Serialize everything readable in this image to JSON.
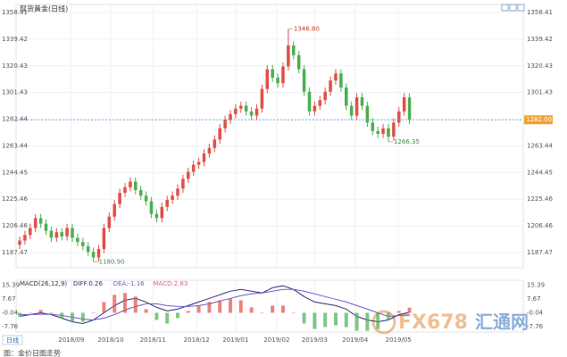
{
  "chart_data": [
    {
      "type": "candlestick",
      "title": "现货黄金(日线)",
      "open": [
        1193,
        1196,
        1200,
        1205,
        1212,
        1208,
        1203,
        1198,
        1202,
        1199,
        1205,
        1198,
        1195,
        1192,
        1188,
        1184,
        1190,
        1205,
        1213,
        1222,
        1230,
        1234,
        1238,
        1232,
        1228,
        1224,
        1215,
        1212,
        1220,
        1225,
        1228,
        1233,
        1240,
        1245,
        1250,
        1252,
        1258,
        1262,
        1268,
        1276,
        1282,
        1286,
        1290,
        1292,
        1288,
        1285,
        1290,
        1304,
        1318,
        1312,
        1308,
        1320,
        1335,
        1328,
        1318,
        1302,
        1288,
        1292,
        1296,
        1302,
        1310,
        1315,
        1305,
        1292,
        1285,
        1298,
        1292,
        1280,
        1274,
        1272,
        1276,
        1270,
        1280,
        1288,
        1298
      ],
      "high": [
        1199,
        1203,
        1208,
        1215,
        1215,
        1211,
        1206,
        1205,
        1205,
        1208,
        1208,
        1201,
        1198,
        1195,
        1191,
        1193,
        1208,
        1216,
        1225,
        1233,
        1237,
        1241,
        1241,
        1235,
        1231,
        1227,
        1218,
        1223,
        1228,
        1231,
        1236,
        1243,
        1248,
        1253,
        1255,
        1261,
        1265,
        1271,
        1279,
        1285,
        1289,
        1293,
        1295,
        1295,
        1291,
        1293,
        1307,
        1321,
        1321,
        1315,
        1323,
        1346.8,
        1338,
        1331,
        1321,
        1305,
        1295,
        1299,
        1305,
        1313,
        1318,
        1318,
        1308,
        1295,
        1301,
        1301,
        1295,
        1283,
        1277,
        1279,
        1279,
        1283,
        1291,
        1301,
        1301
      ],
      "low": [
        1190,
        1193,
        1197,
        1202,
        1205,
        1200,
        1195,
        1195,
        1196,
        1196,
        1195,
        1192,
        1189,
        1185,
        1180.9,
        1181,
        1187,
        1202,
        1210,
        1219,
        1227,
        1231,
        1229,
        1225,
        1221,
        1212,
        1209,
        1209,
        1217,
        1222,
        1225,
        1230,
        1237,
        1242,
        1247,
        1249,
        1255,
        1259,
        1265,
        1273,
        1279,
        1283,
        1287,
        1285,
        1282,
        1282,
        1287,
        1301,
        1309,
        1305,
        1305,
        1317,
        1325,
        1315,
        1299,
        1285,
        1285,
        1289,
        1293,
        1299,
        1307,
        1302,
        1289,
        1282,
        1282,
        1289,
        1277,
        1271,
        1269,
        1269,
        1266.35,
        1267,
        1277,
        1285,
        1279
      ],
      "close": [
        1196,
        1200,
        1205,
        1212,
        1208,
        1203,
        1198,
        1202,
        1199,
        1205,
        1198,
        1195,
        1192,
        1188,
        1184,
        1190,
        1205,
        1213,
        1222,
        1230,
        1234,
        1238,
        1232,
        1228,
        1224,
        1215,
        1212,
        1220,
        1225,
        1228,
        1233,
        1240,
        1245,
        1250,
        1252,
        1258,
        1262,
        1268,
        1276,
        1282,
        1286,
        1290,
        1292,
        1288,
        1285,
        1290,
        1304,
        1318,
        1312,
        1308,
        1320,
        1335,
        1328,
        1318,
        1302,
        1288,
        1292,
        1296,
        1302,
        1310,
        1315,
        1305,
        1292,
        1285,
        1298,
        1292,
        1280,
        1274,
        1272,
        1276,
        1270,
        1280,
        1288,
        1298,
        1282
      ],
      "up_color": "#e0504a",
      "down_color": "#4caf50",
      "xlim": [
        -0.68,
        95.6
      ],
      "ylim": [
        1176.67,
        1364.13
      ],
      "yticks": [
        1358.41,
        1339.42,
        1320.43,
        1301.43,
        1282.44,
        1263.44,
        1244.45,
        1225.46,
        1206.46,
        1187.47
      ],
      "xticks": [
        {
          "value": 9.8,
          "label": "2018/09"
        },
        {
          "value": 17.3,
          "label": "2018/10"
        },
        {
          "value": 25.3,
          "label": "2018/11"
        },
        {
          "value": 33.6,
          "label": "2018/12"
        },
        {
          "value": 41,
          "label": "2019/01"
        },
        {
          "value": 48.8,
          "label": "2019/02"
        },
        {
          "value": 56,
          "label": "2019/03"
        },
        {
          "value": 63.7,
          "label": "2019/04"
        },
        {
          "value": 71.9,
          "label": "2019/05"
        }
      ],
      "annotations": [
        {
          "index": 51,
          "value": 1346.8,
          "label": "1346.80",
          "color": "#c0392b"
        },
        {
          "index": 70,
          "value": 1266.35,
          "label": "1266.35",
          "color": "#3f8f3f"
        },
        {
          "index": 14,
          "value": 1180.9,
          "label": "1180.90",
          "color": "#3f8f3f"
        }
      ],
      "last_price": {
        "value": 1282,
        "label": "1282.00"
      },
      "last_price_color": "#f0a030",
      "grid": true
    },
    {
      "type": "macd",
      "title": "MACD(26,12,9)",
      "x": [
        0,
        2,
        4,
        6,
        8,
        10,
        12,
        14,
        16,
        18,
        20,
        22,
        24,
        26,
        28,
        30,
        32,
        34,
        36,
        38,
        40,
        42,
        44,
        46,
        48,
        50,
        52,
        54,
        56,
        58,
        60,
        62,
        64,
        66,
        68,
        70,
        72,
        74
      ],
      "xlim": [
        -0.68,
        95.6
      ],
      "ylim": [
        -10.7,
        18.1
      ],
      "yticks": [
        15.39,
        7.67,
        -0.04,
        -7.76
      ],
      "series": [
        {
          "name": "DIFF:0.26",
          "color": "#2d2d7a",
          "values": [
            -2,
            -1,
            0,
            -1,
            -3,
            -5,
            -6,
            -4,
            0,
            4,
            7,
            8,
            6,
            3,
            1,
            2,
            4,
            6,
            8,
            10,
            12,
            13,
            12,
            11,
            14,
            15,
            13,
            9,
            6,
            5,
            4,
            2,
            -2,
            -4,
            -5,
            -4,
            -1,
            0.26
          ]
        },
        {
          "name": "DEA:-1.16",
          "color": "#6a5acd",
          "values": [
            -1,
            -1,
            -0.8,
            -0.8,
            -1.5,
            -2.5,
            -3.5,
            -4,
            -3,
            -1,
            1.5,
            3.5,
            5,
            5,
            4,
            3.5,
            3.5,
            4,
            5,
            6.5,
            8,
            9.5,
            10.5,
            11,
            12,
            13,
            13,
            12,
            10.5,
            9,
            7.5,
            6,
            4,
            2,
            0,
            -2,
            -1.5,
            -1.16
          ]
        },
        {
          "name": "MACD:2.83",
          "type": "bar",
          "color": "#e85a8a",
          "up_color": "#e0504a",
          "down_color": "#4caf50",
          "values": [
            -2,
            0,
            1.6,
            -0.4,
            -3,
            -5,
            -5,
            0,
            6,
            10,
            11,
            9,
            2,
            -4,
            -6,
            -3,
            1,
            4,
            6,
            7,
            8,
            7,
            3,
            0,
            4,
            4,
            0,
            -6,
            -9,
            -8,
            -7,
            -8,
            -10,
            -10,
            -9,
            -4,
            1,
            2.83
          ]
        }
      ]
    }
  ],
  "period_label": "日线",
  "watermark_brand": "FX678",
  "watermark_name": "汇通网",
  "caption": "图：金价日图走势"
}
